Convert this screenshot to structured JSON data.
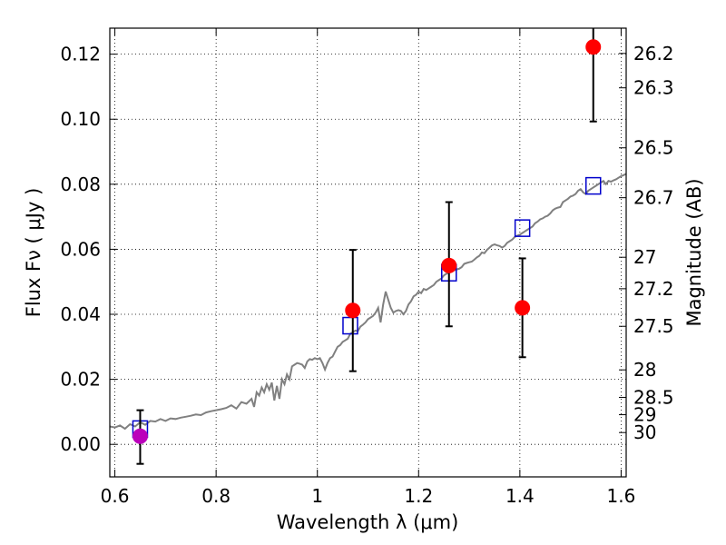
{
  "chart_data": {
    "type": "scatter",
    "title": "",
    "xlabel": "Wavelength  λ (μm)",
    "ylabel": "Flux  Fν  ( μJy )",
    "ylabel_right": "Magnitude (AB)",
    "xlim": [
      0.59,
      1.61
    ],
    "ylim": [
      -0.01,
      0.128
    ],
    "grid": true,
    "x_ticks": [
      {
        "value": 0.6,
        "label": "0.6"
      },
      {
        "value": 0.8,
        "label": "0.8"
      },
      {
        "value": 1.0,
        "label": "1"
      },
      {
        "value": 1.2,
        "label": "1.2"
      },
      {
        "value": 1.4,
        "label": "1.4"
      },
      {
        "value": 1.6,
        "label": "1.6"
      }
    ],
    "y_ticks": [
      {
        "value": 0.0,
        "label": "0.00"
      },
      {
        "value": 0.02,
        "label": "0.02"
      },
      {
        "value": 0.04,
        "label": "0.04"
      },
      {
        "value": 0.06,
        "label": "0.06"
      },
      {
        "value": 0.08,
        "label": "0.08"
      },
      {
        "value": 0.1,
        "label": "0.10"
      },
      {
        "value": 0.12,
        "label": "0.12"
      }
    ],
    "right_ticks": [
      {
        "mag": 26.2,
        "label": "26.2"
      },
      {
        "mag": 26.3,
        "label": "26.3"
      },
      {
        "mag": 26.5,
        "label": "26.5"
      },
      {
        "mag": 26.7,
        "label": "26.7"
      },
      {
        "mag": 27.0,
        "label": "27"
      },
      {
        "mag": 27.2,
        "label": "27.2"
      },
      {
        "mag": 27.5,
        "label": "27.5"
      },
      {
        "mag": 28.0,
        "label": "28"
      },
      {
        "mag": 28.5,
        "label": "28.5"
      },
      {
        "mag": 29.0,
        "label": "29"
      },
      {
        "mag": 30.0,
        "label": "30"
      }
    ],
    "series": [
      {
        "kind": "line",
        "color": "#808080",
        "points": [
          [
            0.59,
            0.0055
          ],
          [
            0.6,
            0.0052
          ],
          [
            0.61,
            0.0058
          ],
          [
            0.62,
            0.0048
          ],
          [
            0.63,
            0.0062
          ],
          [
            0.64,
            0.0055
          ],
          [
            0.65,
            0.0068
          ],
          [
            0.66,
            0.006
          ],
          [
            0.67,
            0.0072
          ],
          [
            0.68,
            0.007
          ],
          [
            0.69,
            0.0078
          ],
          [
            0.7,
            0.0072
          ],
          [
            0.71,
            0.008
          ],
          [
            0.72,
            0.0078
          ],
          [
            0.73,
            0.0082
          ],
          [
            0.74,
            0.0085
          ],
          [
            0.75,
            0.0088
          ],
          [
            0.76,
            0.0092
          ],
          [
            0.77,
            0.009
          ],
          [
            0.78,
            0.0098
          ],
          [
            0.79,
            0.0102
          ],
          [
            0.8,
            0.0105
          ],
          [
            0.81,
            0.0108
          ],
          [
            0.82,
            0.0112
          ],
          [
            0.83,
            0.012
          ],
          [
            0.84,
            0.011
          ],
          [
            0.85,
            0.013
          ],
          [
            0.86,
            0.0125
          ],
          [
            0.87,
            0.014
          ],
          [
            0.875,
            0.0115
          ],
          [
            0.88,
            0.016
          ],
          [
            0.885,
            0.015
          ],
          [
            0.89,
            0.0175
          ],
          [
            0.895,
            0.016
          ],
          [
            0.9,
            0.0185
          ],
          [
            0.905,
            0.0168
          ],
          [
            0.91,
            0.019
          ],
          [
            0.915,
            0.0135
          ],
          [
            0.92,
            0.018
          ],
          [
            0.925,
            0.014
          ],
          [
            0.93,
            0.02
          ],
          [
            0.935,
            0.0185
          ],
          [
            0.94,
            0.0215
          ],
          [
            0.945,
            0.02
          ],
          [
            0.95,
            0.024
          ],
          [
            0.955,
            0.0245
          ],
          [
            0.96,
            0.025
          ],
          [
            0.965,
            0.0248
          ],
          [
            0.97,
            0.0245
          ],
          [
            0.975,
            0.0235
          ],
          [
            0.98,
            0.0255
          ],
          [
            0.985,
            0.0262
          ],
          [
            0.99,
            0.026
          ],
          [
            0.995,
            0.0265
          ],
          [
            1.0,
            0.0262
          ],
          [
            1.005,
            0.0265
          ],
          [
            1.01,
            0.025
          ],
          [
            1.015,
            0.023
          ],
          [
            1.02,
            0.025
          ],
          [
            1.025,
            0.0265
          ],
          [
            1.03,
            0.027
          ],
          [
            1.035,
            0.0285
          ],
          [
            1.04,
            0.03
          ],
          [
            1.045,
            0.0305
          ],
          [
            1.05,
            0.0315
          ],
          [
            1.055,
            0.032
          ],
          [
            1.06,
            0.0325
          ],
          [
            1.065,
            0.034
          ],
          [
            1.07,
            0.0345
          ],
          [
            1.075,
            0.035
          ],
          [
            1.08,
            0.0348
          ],
          [
            1.085,
            0.0362
          ],
          [
            1.09,
            0.0368
          ],
          [
            1.095,
            0.0375
          ],
          [
            1.1,
            0.0385
          ],
          [
            1.105,
            0.039
          ],
          [
            1.11,
            0.0395
          ],
          [
            1.115,
            0.0405
          ],
          [
            1.12,
            0.042
          ],
          [
            1.125,
            0.0375
          ],
          [
            1.13,
            0.043
          ],
          [
            1.135,
            0.047
          ],
          [
            1.14,
            0.0445
          ],
          [
            1.145,
            0.042
          ],
          [
            1.15,
            0.0405
          ],
          [
            1.155,
            0.041
          ],
          [
            1.16,
            0.0413
          ],
          [
            1.165,
            0.041
          ],
          [
            1.17,
            0.04
          ],
          [
            1.175,
            0.041
          ],
          [
            1.18,
            0.043
          ],
          [
            1.185,
            0.044
          ],
          [
            1.19,
            0.0455
          ],
          [
            1.195,
            0.046
          ],
          [
            1.2,
            0.047
          ],
          [
            1.205,
            0.0465
          ],
          [
            1.21,
            0.0478
          ],
          [
            1.215,
            0.0475
          ],
          [
            1.22,
            0.048
          ],
          [
            1.225,
            0.0485
          ],
          [
            1.23,
            0.049
          ],
          [
            1.235,
            0.05
          ],
          [
            1.24,
            0.0505
          ],
          [
            1.245,
            0.051
          ],
          [
            1.25,
            0.052
          ],
          [
            1.255,
            0.0525
          ],
          [
            1.26,
            0.0528
          ],
          [
            1.265,
            0.0532
          ],
          [
            1.27,
            0.0535
          ],
          [
            1.275,
            0.0538
          ],
          [
            1.28,
            0.054
          ],
          [
            1.285,
            0.0545
          ],
          [
            1.29,
            0.0555
          ],
          [
            1.295,
            0.0558
          ],
          [
            1.3,
            0.056
          ],
          [
            1.305,
            0.0562
          ],
          [
            1.31,
            0.0568
          ],
          [
            1.315,
            0.0575
          ],
          [
            1.32,
            0.058
          ],
          [
            1.325,
            0.059
          ],
          [
            1.33,
            0.0588
          ],
          [
            1.335,
            0.0598
          ],
          [
            1.34,
            0.0605
          ],
          [
            1.345,
            0.0612
          ],
          [
            1.35,
            0.0615
          ],
          [
            1.355,
            0.0612
          ],
          [
            1.36,
            0.061
          ],
          [
            1.365,
            0.0605
          ],
          [
            1.37,
            0.061
          ],
          [
            1.375,
            0.062
          ],
          [
            1.38,
            0.0625
          ],
          [
            1.385,
            0.063
          ],
          [
            1.39,
            0.0638
          ],
          [
            1.395,
            0.0642
          ],
          [
            1.4,
            0.0645
          ],
          [
            1.405,
            0.065
          ],
          [
            1.41,
            0.0655
          ],
          [
            1.415,
            0.066
          ],
          [
            1.42,
            0.0665
          ],
          [
            1.425,
            0.067
          ],
          [
            1.43,
            0.068
          ],
          [
            1.435,
            0.0685
          ],
          [
            1.44,
            0.0692
          ],
          [
            1.445,
            0.0695
          ],
          [
            1.45,
            0.07
          ],
          [
            1.455,
            0.0703
          ],
          [
            1.46,
            0.071
          ],
          [
            1.465,
            0.072
          ],
          [
            1.47,
            0.0725
          ],
          [
            1.475,
            0.0728
          ],
          [
            1.48,
            0.073
          ],
          [
            1.485,
            0.0745
          ],
          [
            1.49,
            0.075
          ],
          [
            1.495,
            0.0755
          ],
          [
            1.5,
            0.0762
          ],
          [
            1.505,
            0.0765
          ],
          [
            1.51,
            0.077
          ],
          [
            1.515,
            0.078
          ],
          [
            1.52,
            0.0785
          ],
          [
            1.525,
            0.0775
          ],
          [
            1.53,
            0.077
          ],
          [
            1.535,
            0.078
          ],
          [
            1.54,
            0.0785
          ],
          [
            1.545,
            0.079
          ],
          [
            1.55,
            0.0795
          ],
          [
            1.555,
            0.08
          ],
          [
            1.56,
            0.0805
          ],
          [
            1.565,
            0.081
          ],
          [
            1.57,
            0.08
          ],
          [
            1.575,
            0.081
          ],
          [
            1.58,
            0.0808
          ],
          [
            1.585,
            0.0812
          ],
          [
            1.59,
            0.0815
          ],
          [
            1.595,
            0.082
          ],
          [
            1.6,
            0.0825
          ],
          [
            1.605,
            0.0828
          ],
          [
            1.61,
            0.0832
          ]
        ]
      },
      {
        "kind": "squares",
        "color": "#0000cc",
        "points": [
          [
            0.65,
            0.0047
          ],
          [
            1.065,
            0.0365
          ],
          [
            1.26,
            0.0528
          ],
          [
            1.405,
            0.0665
          ],
          [
            1.545,
            0.0795
          ]
        ]
      },
      {
        "kind": "points",
        "color": "#ff0000",
        "points": [
          {
            "x": 1.07,
            "y": 0.0412,
            "ylo": 0.0225,
            "yhi": 0.0598
          },
          {
            "x": 1.26,
            "y": 0.055,
            "ylo": 0.0363,
            "yhi": 0.0745
          },
          {
            "x": 1.405,
            "y": 0.042,
            "ylo": 0.0268,
            "yhi": 0.0572
          },
          {
            "x": 1.545,
            "y": 0.1222,
            "ylo": 0.0993,
            "yhi": 0.128
          }
        ]
      },
      {
        "kind": "points",
        "color": "#bb00bb",
        "points": [
          {
            "x": 0.65,
            "y": 0.0025,
            "ylo": -0.006,
            "yhi": 0.0105
          }
        ]
      }
    ]
  }
}
